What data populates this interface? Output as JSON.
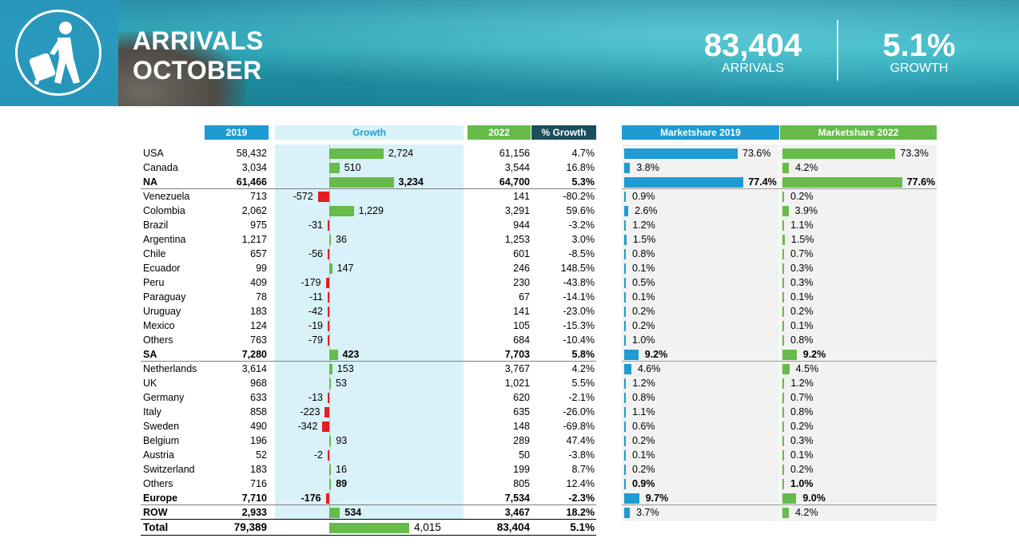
{
  "header": {
    "title_line1": "ARRIVALS",
    "title_line2": "OCTOBER",
    "kpi_arrivals_value": "83,404",
    "kpi_arrivals_label": "ARRIVALS",
    "kpi_growth_value": "5.1%",
    "kpi_growth_label": "GROWTH",
    "icon": "traveler-with-luggage-icon"
  },
  "columns": {
    "y2019": "2019",
    "growth": "Growth",
    "y2022": "2022",
    "pct_growth": "% Growth",
    "ms2019": "Marketshare 2019",
    "ms2022": "Marketshare 2022"
  },
  "colors": {
    "blue_header": "#1e9bd2",
    "green": "#66bb4a",
    "dark_teal": "#1b4f5e",
    "red": "#e31e24"
  },
  "rows": [
    {
      "name": "USA",
      "v2019": "58,432",
      "growth": 2724,
      "growth_label": "2,724",
      "v2022": "61,156",
      "pct": "4.7%",
      "ms19": 73.6,
      "ms19_label": "73.6%",
      "ms22": 73.3,
      "ms22_label": "73.3%",
      "bold": false
    },
    {
      "name": "Canada",
      "v2019": "3,034",
      "growth": 510,
      "growth_label": "510",
      "v2022": "3,544",
      "pct": "16.8%",
      "ms19": 3.8,
      "ms19_label": "3.8%",
      "ms22": 4.2,
      "ms22_label": "4.2%",
      "bold": false
    },
    {
      "name": "NA",
      "v2019": "61,466",
      "growth": 3234,
      "growth_label": "3,234",
      "v2022": "64,700",
      "pct": "5.3%",
      "ms19": 77.4,
      "ms19_label": "77.4%",
      "ms22": 77.6,
      "ms22_label": "77.6%",
      "bold": true
    },
    {
      "name": "Venezuela",
      "v2019": "713",
      "growth": -572,
      "growth_label": "-572",
      "v2022": "141",
      "pct": "-80.2%",
      "ms19": 0.9,
      "ms19_label": "0.9%",
      "ms22": 0.2,
      "ms22_label": "0.2%",
      "bold": false
    },
    {
      "name": "Colombia",
      "v2019": "2,062",
      "growth": 1229,
      "growth_label": "1,229",
      "v2022": "3,291",
      "pct": "59.6%",
      "ms19": 2.6,
      "ms19_label": "2.6%",
      "ms22": 3.9,
      "ms22_label": "3.9%",
      "bold": false
    },
    {
      "name": "Brazil",
      "v2019": "975",
      "growth": -31,
      "growth_label": "-31",
      "v2022": "944",
      "pct": "-3.2%",
      "ms19": 1.2,
      "ms19_label": "1.2%",
      "ms22": 1.1,
      "ms22_label": "1.1%",
      "bold": false
    },
    {
      "name": "Argentina",
      "v2019": "1,217",
      "growth": 36,
      "growth_label": "36",
      "v2022": "1,253",
      "pct": "3.0%",
      "ms19": 1.5,
      "ms19_label": "1.5%",
      "ms22": 1.5,
      "ms22_label": "1.5%",
      "bold": false
    },
    {
      "name": "Chile",
      "v2019": "657",
      "growth": -56,
      "growth_label": "-56",
      "v2022": "601",
      "pct": "-8.5%",
      "ms19": 0.8,
      "ms19_label": "0.8%",
      "ms22": 0.7,
      "ms22_label": "0.7%",
      "bold": false
    },
    {
      "name": "Ecuador",
      "v2019": "99",
      "growth": 147,
      "growth_label": "147",
      "v2022": "246",
      "pct": "148.5%",
      "ms19": 0.1,
      "ms19_label": "0.1%",
      "ms22": 0.3,
      "ms22_label": "0.3%",
      "bold": false
    },
    {
      "name": "Peru",
      "v2019": "409",
      "growth": -179,
      "growth_label": "-179",
      "v2022": "230",
      "pct": "-43.8%",
      "ms19": 0.5,
      "ms19_label": "0.5%",
      "ms22": 0.3,
      "ms22_label": "0.3%",
      "bold": false
    },
    {
      "name": "Paraguay",
      "v2019": "78",
      "growth": -11,
      "growth_label": "-11",
      "v2022": "67",
      "pct": "-14.1%",
      "ms19": 0.1,
      "ms19_label": "0.1%",
      "ms22": 0.1,
      "ms22_label": "0.1%",
      "bold": false
    },
    {
      "name": "Uruguay",
      "v2019": "183",
      "growth": -42,
      "growth_label": "-42",
      "v2022": "141",
      "pct": "-23.0%",
      "ms19": 0.2,
      "ms19_label": "0.2%",
      "ms22": 0.2,
      "ms22_label": "0.2%",
      "bold": false
    },
    {
      "name": "Mexico",
      "v2019": "124",
      "growth": -19,
      "growth_label": "-19",
      "v2022": "105",
      "pct": "-15.3%",
      "ms19": 0.2,
      "ms19_label": "0.2%",
      "ms22": 0.1,
      "ms22_label": "0.1%",
      "bold": false
    },
    {
      "name": "Others",
      "v2019": "763",
      "growth": -79,
      "growth_label": "-79",
      "v2022": "684",
      "pct": "-10.4%",
      "ms19": 1.0,
      "ms19_label": "1.0%",
      "ms22": 0.8,
      "ms22_label": "0.8%",
      "bold": false
    },
    {
      "name": "SA",
      "v2019": "7,280",
      "growth": 423,
      "growth_label": "423",
      "v2022": "7,703",
      "pct": "5.8%",
      "ms19": 9.2,
      "ms19_label": "9.2%",
      "ms22": 9.2,
      "ms22_label": "9.2%",
      "bold": true
    },
    {
      "name": "Netherlands",
      "v2019": "3,614",
      "growth": 153,
      "growth_label": "153",
      "v2022": "3,767",
      "pct": "4.2%",
      "ms19": 4.6,
      "ms19_label": "4.6%",
      "ms22": 4.5,
      "ms22_label": "4.5%",
      "bold": false
    },
    {
      "name": "UK",
      "v2019": "968",
      "growth": 53,
      "growth_label": "53",
      "v2022": "1,021",
      "pct": "5.5%",
      "ms19": 1.2,
      "ms19_label": "1.2%",
      "ms22": 1.2,
      "ms22_label": "1.2%",
      "bold": false
    },
    {
      "name": "Germany",
      "v2019": "633",
      "growth": -13,
      "growth_label": "-13",
      "v2022": "620",
      "pct": "-2.1%",
      "ms19": 0.8,
      "ms19_label": "0.8%",
      "ms22": 0.7,
      "ms22_label": "0.7%",
      "bold": false
    },
    {
      "name": "Italy",
      "v2019": "858",
      "growth": -223,
      "growth_label": "-223",
      "v2022": "635",
      "pct": "-26.0%",
      "ms19": 1.1,
      "ms19_label": "1.1%",
      "ms22": 0.8,
      "ms22_label": "0.8%",
      "bold": false
    },
    {
      "name": "Sweden",
      "v2019": "490",
      "growth": -342,
      "growth_label": "-342",
      "v2022": "148",
      "pct": "-69.8%",
      "ms19": 0.6,
      "ms19_label": "0.6%",
      "ms22": 0.2,
      "ms22_label": "0.2%",
      "bold": false
    },
    {
      "name": "Belgium",
      "v2019": "196",
      "growth": 93,
      "growth_label": "93",
      "v2022": "289",
      "pct": "47.4%",
      "ms19": 0.2,
      "ms19_label": "0.2%",
      "ms22": 0.3,
      "ms22_label": "0.3%",
      "bold": false
    },
    {
      "name": "Austria",
      "v2019": "52",
      "growth": -2,
      "growth_label": "-2",
      "v2022": "50",
      "pct": "-3.8%",
      "ms19": 0.1,
      "ms19_label": "0.1%",
      "ms22": 0.1,
      "ms22_label": "0.1%",
      "bold": false
    },
    {
      "name": "Switzerland",
      "v2019": "183",
      "growth": 16,
      "growth_label": "16",
      "v2022": "199",
      "pct": "8.7%",
      "ms19": 0.2,
      "ms19_label": "0.2%",
      "ms22": 0.2,
      "ms22_label": "0.2%",
      "bold": false
    },
    {
      "name": "Others",
      "v2019": "716",
      "growth": 89,
      "growth_label": "89",
      "v2022": "805",
      "pct": "12.4%",
      "ms19": 0.9,
      "ms19_label": "0.9%",
      "ms22": 1.0,
      "ms22_label": "1.0%",
      "bold": false,
      "bold_growth": true,
      "bold_ms": true
    },
    {
      "name": "Europe",
      "v2019": "7,710",
      "growth": -176,
      "growth_label": "-176",
      "v2022": "7,534",
      "pct": "-2.3%",
      "ms19": 9.7,
      "ms19_label": "9.7%",
      "ms22": 9.0,
      "ms22_label": "9.0%",
      "bold": true
    },
    {
      "name": "ROW",
      "v2019": "2,933",
      "growth": 534,
      "growth_label": "534",
      "v2022": "3,467",
      "pct": "18.2%",
      "ms19": 3.7,
      "ms19_label": "3.7%",
      "ms22": 4.2,
      "ms22_label": "4.2%",
      "bold": true,
      "normal_ms": true
    },
    {
      "name": "Total",
      "v2019": "79,389",
      "growth": 4015,
      "growth_label": "4,015",
      "v2022": "83,404",
      "pct": "5.1%",
      "bold": true,
      "total": true
    }
  ]
}
